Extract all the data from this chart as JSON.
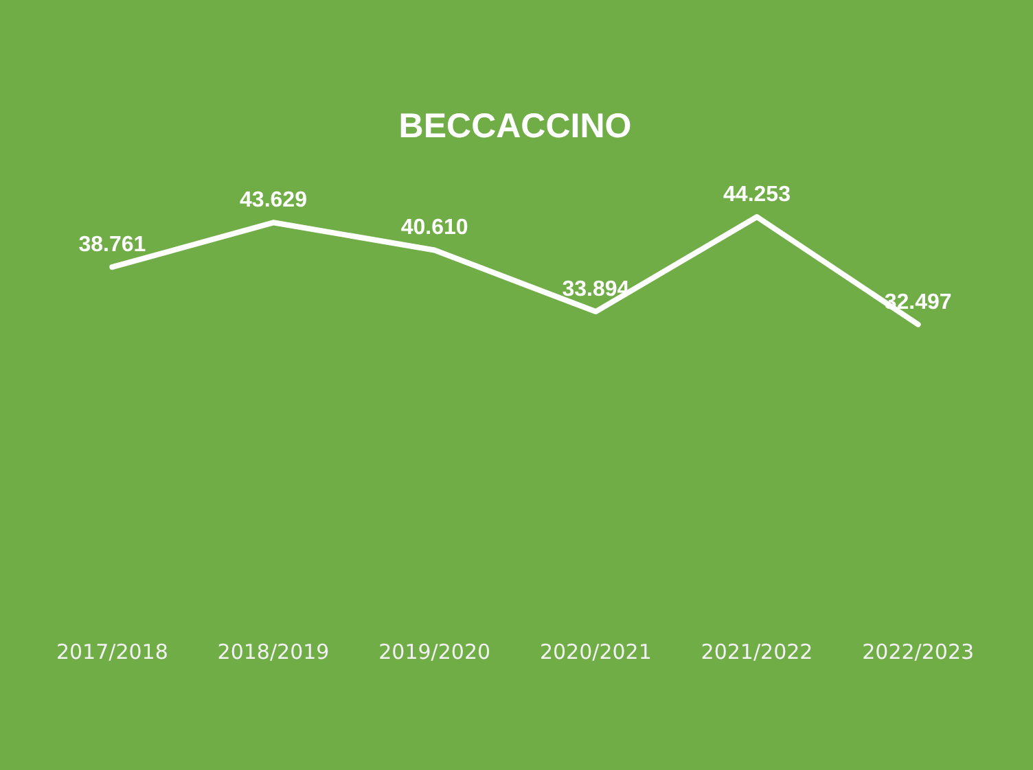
{
  "chart_data": {
    "type": "line",
    "title": "BECCACCINO",
    "categories": [
      "2017/2018",
      "2018/2019",
      "2019/2020",
      "2020/2021",
      "2021/2022",
      "2022/2023"
    ],
    "series": [
      {
        "color": "#ffffff",
        "values": [
          38761,
          43629,
          40610,
          33894,
          44253,
          32497
        ],
        "value_labels": [
          "38.761",
          "43.629",
          "40.610",
          "33.894",
          "44.253",
          "32.497"
        ]
      }
    ],
    "tick_labels": "x",
    "grid": false,
    "legend": false,
    "marker": "none",
    "line_style": "solid"
  }
}
